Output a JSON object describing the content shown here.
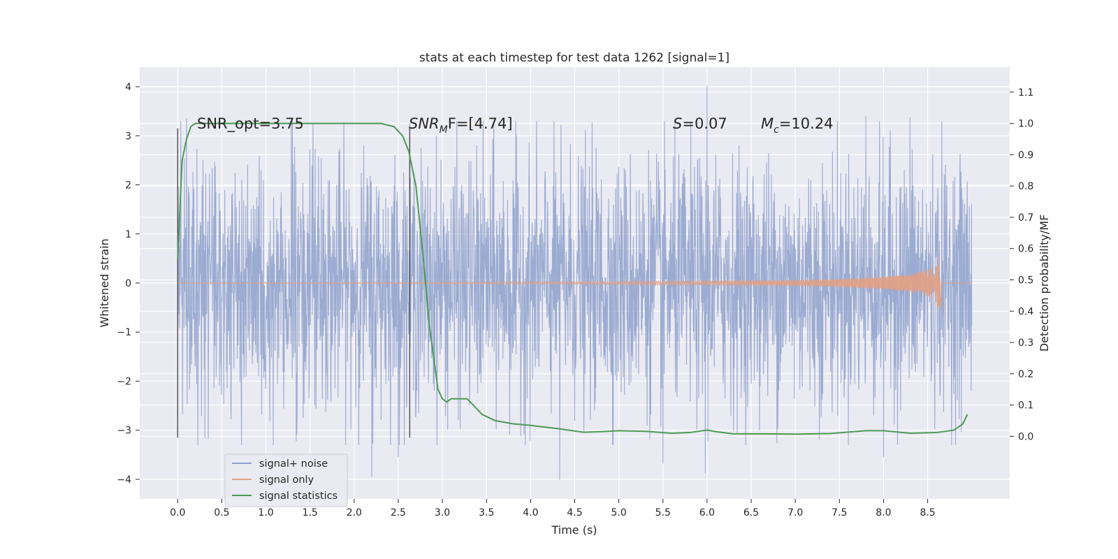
{
  "chart_data": {
    "type": "line",
    "title": "stats at each timestep for test data 1262 [signal=1]",
    "xlabel": "Time (s)",
    "ylabel": "Whitened strain",
    "ylabel_right": "Detection probability/MF",
    "xlim": [
      -0.43,
      9.43
    ],
    "ylim": [
      -4.4,
      4.4
    ],
    "ylim_right": [
      -0.2,
      1.18
    ],
    "x_ticks": [
      0.0,
      0.5,
      1.0,
      1.5,
      2.0,
      2.5,
      3.0,
      3.5,
      4.0,
      4.5,
      5.0,
      5.5,
      6.0,
      6.5,
      7.0,
      7.5,
      8.0,
      8.5
    ],
    "x_tick_labels": [
      "0.0",
      "0.5",
      "1.0",
      "1.5",
      "2.0",
      "2.5",
      "3.0",
      "3.5",
      "4.0",
      "4.5",
      "5.0",
      "5.5",
      "6.0",
      "6.5",
      "7.0",
      "7.5",
      "8.0",
      "8.5"
    ],
    "y_ticks": [
      4,
      3,
      2,
      1,
      0,
      -1,
      -2,
      -3,
      -4
    ],
    "y_tick_labels": [
      "4",
      "3",
      "2",
      "1",
      "0",
      "−1",
      "−2",
      "−3",
      "−4"
    ],
    "y_right_ticks": [
      1.1,
      1.0,
      0.9,
      0.8,
      0.7,
      0.6,
      0.5,
      0.4,
      0.3,
      0.2,
      0.1,
      0.0
    ],
    "y_right_tick_labels": [
      "1.1",
      "1.0",
      "0.9",
      "0.8",
      "0.7",
      "0.6",
      "0.5",
      "0.4",
      "0.3",
      "0.2",
      "0.1",
      "0.0"
    ],
    "grid": true,
    "legend_position": "lower-left",
    "vertical_markers": [
      {
        "name": "start",
        "x": 0.0,
        "y_range": [
          -3.15,
          3.15
        ]
      },
      {
        "name": "peak-mf",
        "x": 2.63,
        "y_range": [
          -3.15,
          3.15
        ]
      }
    ],
    "annotations": [
      {
        "id": "snr_opt",
        "x": 0.2,
        "y": 3.15,
        "text": "SNR_opt=3.75"
      },
      {
        "id": "snr_mf",
        "x": 2.6,
        "y": 3.15,
        "text": "SNR_MF=[4.74]",
        "parts": {
          "a": "SNR",
          "sub": "M",
          "b": "F=[4.74]"
        }
      },
      {
        "id": "s",
        "x": 5.6,
        "y": 3.15,
        "text": "S=0.07",
        "parts": {
          "a": "S",
          "b": "=0.07"
        }
      },
      {
        "id": "mc",
        "x": 6.6,
        "y": 3.15,
        "text": "M_c=10.24",
        "parts": {
          "a": "M",
          "sub": "c",
          "b": "=10.24"
        }
      }
    ],
    "series": [
      {
        "name": "signal+ noise",
        "axis": "left",
        "color": "#8da0cb",
        "description": "whitened noisy strain, roughly gaussian with std ~1.25 over t = 0 to 9.0 s",
        "t_range": [
          0.0,
          9.0
        ],
        "typical_std": 1.25,
        "extremes": [
          {
            "t": 6.0,
            "v": 4.02
          },
          {
            "t": 2.2,
            "v": -3.95
          },
          {
            "t": 4.33,
            "v": -4.02
          },
          {
            "t": 5.98,
            "v": -3.88
          },
          {
            "t": 5.5,
            "v": -3.68
          },
          {
            "t": 2.5,
            "v": -3.55
          },
          {
            "t": 8.0,
            "v": -3.55
          },
          {
            "t": 7.8,
            "v": 3.4
          },
          {
            "t": 8.3,
            "v": 3.38
          },
          {
            "t": 0.1,
            "v": 3.36
          },
          {
            "t": 1.3,
            "v": 3.3
          }
        ]
      },
      {
        "name": "signal only",
        "axis": "left",
        "color": "#e3a082",
        "description": "chirp with amplitude growing towards merger at t = 8.65 s",
        "envelope": {
          "t": [
            0.0,
            4.0,
            5.0,
            6.0,
            7.0,
            7.5,
            8.0,
            8.3,
            8.5,
            8.6,
            8.65
          ],
          "amp": [
            0.003,
            0.02,
            0.03,
            0.04,
            0.06,
            0.08,
            0.13,
            0.18,
            0.27,
            0.4,
            0.7
          ]
        },
        "merger_time": 8.65
      },
      {
        "name": "signal statistics",
        "axis": "right",
        "color": "#4c9a55",
        "x": [
          0.0,
          0.05,
          0.1,
          0.15,
          0.2,
          0.4,
          0.8,
          1.2,
          1.6,
          2.0,
          2.3,
          2.45,
          2.55,
          2.62,
          2.7,
          2.78,
          2.85,
          2.95,
          3.0,
          3.05,
          3.1,
          3.15,
          3.2,
          3.28,
          3.35,
          3.45,
          3.6,
          3.8,
          4.0,
          4.3,
          4.6,
          4.8,
          5.0,
          5.3,
          5.6,
          5.8,
          6.0,
          6.1,
          6.3,
          6.6,
          7.0,
          7.4,
          7.8,
          8.0,
          8.3,
          8.6,
          8.8,
          8.9,
          8.95
        ],
        "values": [
          0.57,
          0.88,
          0.95,
          0.99,
          1.0,
          1.0,
          1.0,
          1.0,
          1.0,
          1.0,
          1.0,
          0.99,
          0.96,
          0.91,
          0.8,
          0.58,
          0.36,
          0.15,
          0.12,
          0.11,
          0.12,
          0.12,
          0.12,
          0.12,
          0.1,
          0.07,
          0.05,
          0.04,
          0.035,
          0.025,
          0.013,
          0.015,
          0.018,
          0.016,
          0.01,
          0.012,
          0.02,
          0.015,
          0.008,
          0.008,
          0.007,
          0.009,
          0.018,
          0.018,
          0.01,
          0.012,
          0.02,
          0.04,
          0.07
        ]
      }
    ]
  }
}
